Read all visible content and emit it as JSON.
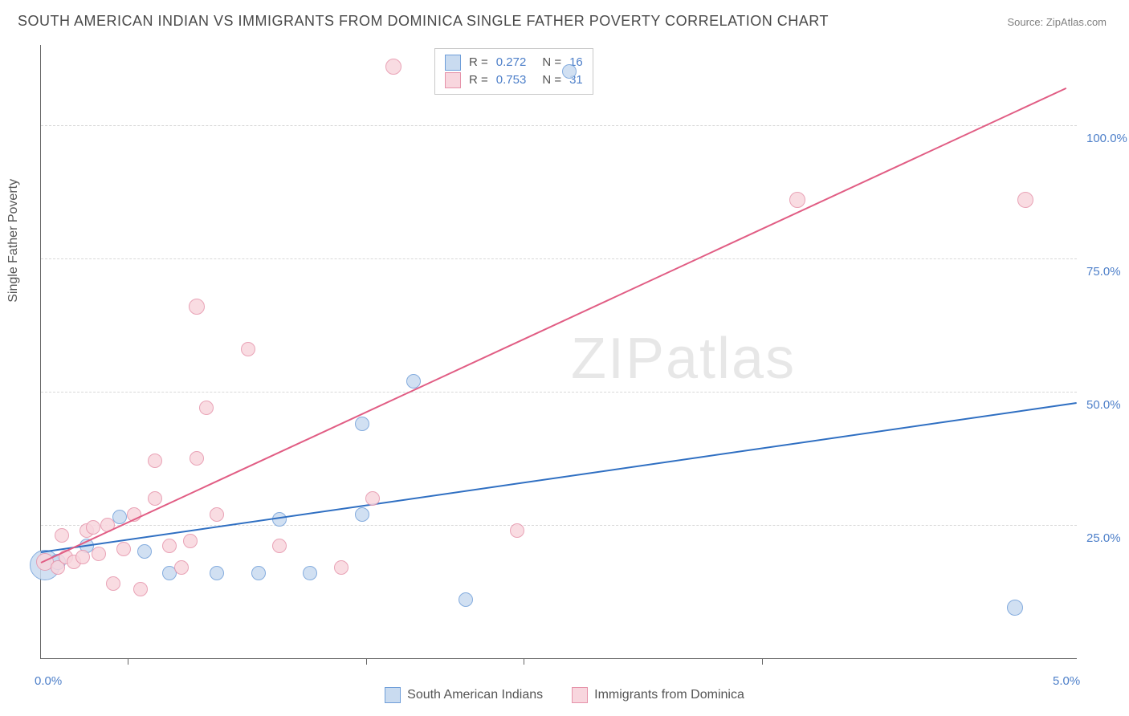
{
  "title": "SOUTH AMERICAN INDIAN VS IMMIGRANTS FROM DOMINICA SINGLE FATHER POVERTY CORRELATION CHART",
  "source": "Source: ZipAtlas.com",
  "ylabel": "Single Father Poverty",
  "watermark": "ZIPatlas",
  "chart": {
    "type": "scatter",
    "xlim": [
      0.0,
      5.0
    ],
    "ylim": [
      0.0,
      115.0
    ],
    "background_color": "#ffffff",
    "grid_color": "#d8d8d8",
    "axis_color": "#666666",
    "yticks": [
      {
        "v": 25.0,
        "label": "25.0%"
      },
      {
        "v": 50.0,
        "label": "50.0%"
      },
      {
        "v": 75.0,
        "label": "75.0%"
      },
      {
        "v": 100.0,
        "label": "100.0%"
      }
    ],
    "xticks_major": [
      {
        "v": 0.0,
        "label": "0.0%"
      },
      {
        "v": 5.0,
        "label": "5.0%"
      }
    ],
    "xticks_minor": [
      0.42,
      1.57,
      2.33,
      3.48
    ],
    "series": [
      {
        "name": "South American Indians",
        "color_fill": "#c9dbf0",
        "color_stroke": "#6f9ed9",
        "line_color": "#2f6fc2",
        "R": "0.272",
        "N": "16",
        "trend": {
          "x1": 0.0,
          "y1": 20.0,
          "x2": 5.0,
          "y2": 48.0
        },
        "points": [
          {
            "x": 0.02,
            "y": 17.5,
            "r": 18
          },
          {
            "x": 0.08,
            "y": 18.0,
            "r": 9
          },
          {
            "x": 0.22,
            "y": 21.0,
            "r": 8
          },
          {
            "x": 0.38,
            "y": 26.5,
            "r": 8
          },
          {
            "x": 0.5,
            "y": 20.0,
            "r": 8
          },
          {
            "x": 0.62,
            "y": 16.0,
            "r": 8
          },
          {
            "x": 0.85,
            "y": 16.0,
            "r": 8
          },
          {
            "x": 1.05,
            "y": 16.0,
            "r": 8
          },
          {
            "x": 1.15,
            "y": 26.0,
            "r": 8
          },
          {
            "x": 1.3,
            "y": 16.0,
            "r": 8
          },
          {
            "x": 1.55,
            "y": 27.0,
            "r": 8
          },
          {
            "x": 1.55,
            "y": 44.0,
            "r": 8
          },
          {
            "x": 1.8,
            "y": 52.0,
            "r": 8
          },
          {
            "x": 2.05,
            "y": 11.0,
            "r": 8
          },
          {
            "x": 2.55,
            "y": 110.0,
            "r": 8
          },
          {
            "x": 4.7,
            "y": 9.5,
            "r": 9
          }
        ]
      },
      {
        "name": "Immigrants from Dominica",
        "color_fill": "#f8d6de",
        "color_stroke": "#e693aa",
        "line_color": "#e15d84",
        "R": "0.753",
        "N": "31",
        "trend": {
          "x1": 0.0,
          "y1": 18.0,
          "x2": 4.95,
          "y2": 107.0
        },
        "points": [
          {
            "x": 0.02,
            "y": 18.0,
            "r": 10
          },
          {
            "x": 0.08,
            "y": 17.0,
            "r": 8
          },
          {
            "x": 0.1,
            "y": 23.0,
            "r": 8
          },
          {
            "x": 0.12,
            "y": 19.0,
            "r": 8
          },
          {
            "x": 0.16,
            "y": 18.0,
            "r": 8
          },
          {
            "x": 0.2,
            "y": 19.0,
            "r": 8
          },
          {
            "x": 0.22,
            "y": 24.0,
            "r": 8
          },
          {
            "x": 0.25,
            "y": 24.5,
            "r": 8
          },
          {
            "x": 0.28,
            "y": 19.5,
            "r": 8
          },
          {
            "x": 0.32,
            "y": 25.0,
            "r": 8
          },
          {
            "x": 0.35,
            "y": 14.0,
            "r": 8
          },
          {
            "x": 0.4,
            "y": 20.5,
            "r": 8
          },
          {
            "x": 0.45,
            "y": 27.0,
            "r": 8
          },
          {
            "x": 0.48,
            "y": 13.0,
            "r": 8
          },
          {
            "x": 0.55,
            "y": 30.0,
            "r": 8
          },
          {
            "x": 0.55,
            "y": 37.0,
            "r": 8
          },
          {
            "x": 0.62,
            "y": 21.0,
            "r": 8
          },
          {
            "x": 0.68,
            "y": 17.0,
            "r": 8
          },
          {
            "x": 0.72,
            "y": 22.0,
            "r": 8
          },
          {
            "x": 0.75,
            "y": 66.0,
            "r": 9
          },
          {
            "x": 0.75,
            "y": 37.5,
            "r": 8
          },
          {
            "x": 0.8,
            "y": 47.0,
            "r": 8
          },
          {
            "x": 0.85,
            "y": 27.0,
            "r": 8
          },
          {
            "x": 1.0,
            "y": 58.0,
            "r": 8
          },
          {
            "x": 1.15,
            "y": 21.0,
            "r": 8
          },
          {
            "x": 1.45,
            "y": 17.0,
            "r": 8
          },
          {
            "x": 1.6,
            "y": 30.0,
            "r": 8
          },
          {
            "x": 1.7,
            "y": 111.0,
            "r": 9
          },
          {
            "x": 2.3,
            "y": 24.0,
            "r": 8
          },
          {
            "x": 3.65,
            "y": 86.0,
            "r": 9
          },
          {
            "x": 4.75,
            "y": 86.0,
            "r": 9
          }
        ]
      }
    ]
  },
  "stats_box": {
    "rows": [
      {
        "swatch_fill": "#c9dbf0",
        "swatch_stroke": "#6f9ed9",
        "R": "0.272",
        "N": "16"
      },
      {
        "swatch_fill": "#f8d6de",
        "swatch_stroke": "#e693aa",
        "R": "0.753",
        "N": "31"
      }
    ]
  },
  "bottom_legend": [
    {
      "swatch_fill": "#c9dbf0",
      "swatch_stroke": "#6f9ed9",
      "label": "South American Indians"
    },
    {
      "swatch_fill": "#f8d6de",
      "swatch_stroke": "#e693aa",
      "label": "Immigrants from Dominica"
    }
  ]
}
